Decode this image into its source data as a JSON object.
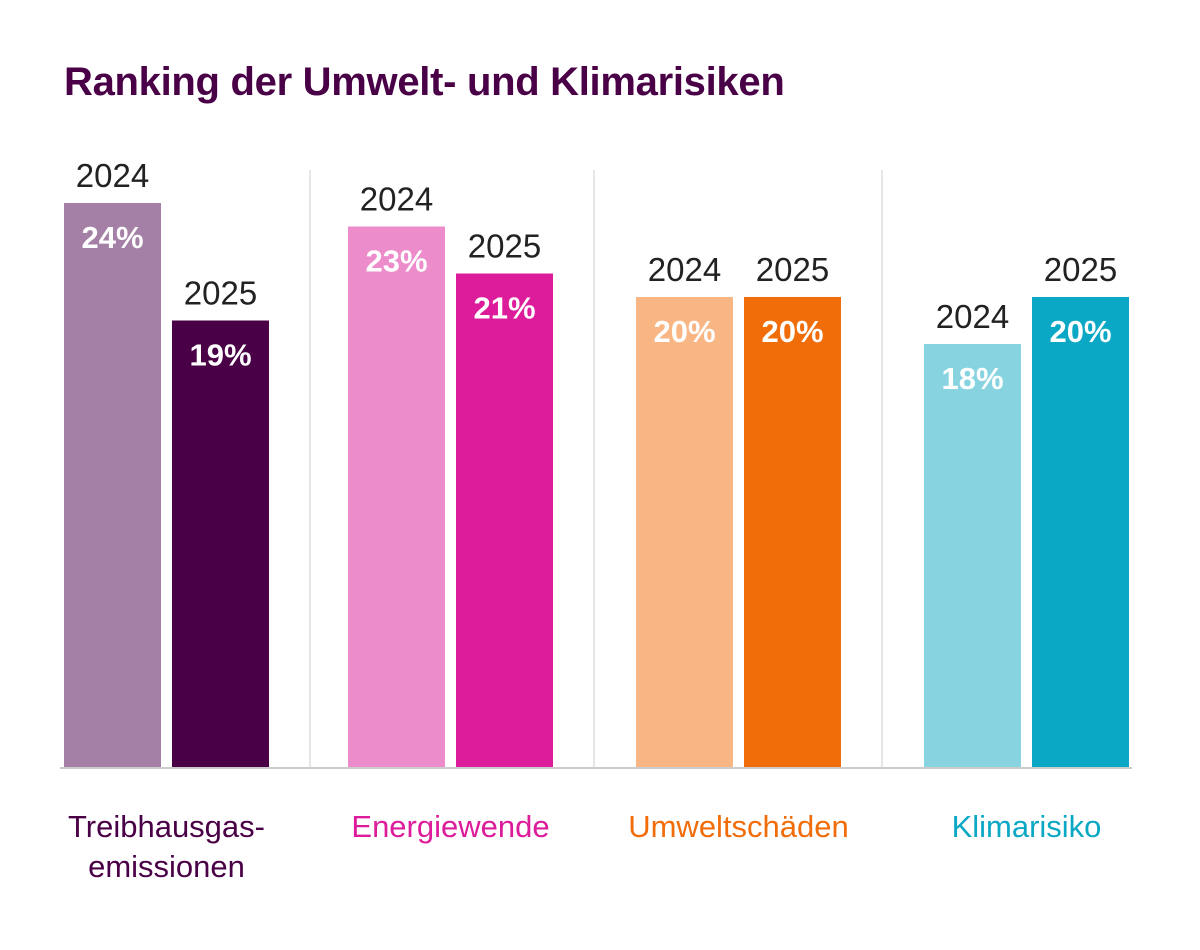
{
  "chart_data": {
    "type": "bar",
    "title": "Ranking der Umwelt- und Klimarisiken",
    "xlabel": "",
    "ylabel": "",
    "ylim": [
      0,
      24
    ],
    "grid": false,
    "legend": "none",
    "unit": "%",
    "categories": [
      {
        "label_lines": [
          "Treibhausgas-",
          "emissionen"
        ],
        "color": "#4a0046",
        "bars": [
          {
            "year": "2024",
            "value": 24,
            "label": "24%",
            "color": "#a580a6"
          },
          {
            "year": "2025",
            "value": 19,
            "label": "19%",
            "color": "#4a0046"
          }
        ]
      },
      {
        "label_lines": [
          "Energiewende"
        ],
        "color": "#dc1c9a",
        "bars": [
          {
            "year": "2024",
            "value": 23,
            "label": "23%",
            "color": "#ec8ccb"
          },
          {
            "year": "2025",
            "value": 21,
            "label": "21%",
            "color": "#dc1c9a"
          }
        ]
      },
      {
        "label_lines": [
          "Umweltschäden"
        ],
        "color": "#f06d0a",
        "bars": [
          {
            "year": "2024",
            "value": 20,
            "label": "20%",
            "color": "#f9b685"
          },
          {
            "year": "2025",
            "value": 20,
            "label": "20%",
            "color": "#f06d0a"
          }
        ]
      },
      {
        "label_lines": [
          "Klimarisiko"
        ],
        "color": "#0aa8c4",
        "bars": [
          {
            "year": "2024",
            "value": 18,
            "label": "18%",
            "color": "#87d4e0"
          },
          {
            "year": "2025",
            "value": 20,
            "label": "20%",
            "color": "#0aa8c4"
          }
        ]
      }
    ]
  }
}
